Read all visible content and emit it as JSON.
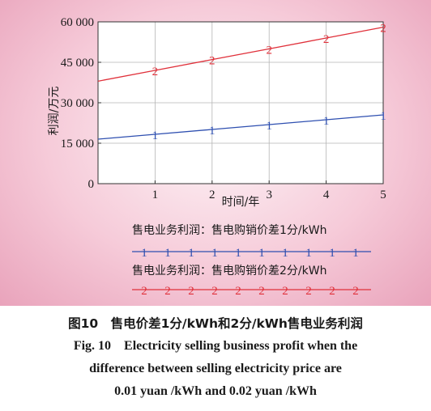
{
  "chart_data": {
    "type": "line",
    "title": "",
    "xlabel": "时间/年",
    "ylabel": "利润/万元",
    "xlim": [
      0,
      5
    ],
    "ylim": [
      0,
      60000
    ],
    "x_ticks": [
      1,
      2,
      3,
      4,
      5
    ],
    "x_tick_labels": [
      "1",
      "2",
      "3",
      "4",
      "5"
    ],
    "y_ticks": [
      0,
      15000,
      30000,
      45000,
      60000
    ],
    "y_tick_labels": [
      "0",
      "15 000",
      "30 000",
      "45 000",
      "60 000"
    ],
    "grid": true,
    "legend_position": "bottom",
    "series": [
      {
        "name": "售电业务利润：售电购销价差1分/kWh",
        "marker": "1",
        "color": "#2e4fb0",
        "x": [
          0,
          1,
          2,
          3,
          4,
          5
        ],
        "y": [
          16500,
          18300,
          20100,
          21900,
          23700,
          25500
        ]
      },
      {
        "name": "售电业务利润：售电购销价差2分/kWh",
        "marker": "2",
        "color": "#e0303a",
        "x": [
          0,
          1,
          2,
          3,
          4,
          5
        ],
        "y": [
          38000,
          42000,
          46000,
          50000,
          54000,
          58000
        ]
      }
    ]
  },
  "caption": {
    "cn": "图10　售电价差1分/kWh和2分/kWh售电业务利润",
    "en_lines": [
      "Fig. 10　Electricity selling business profit when the",
      "difference between selling electricity price are",
      "0.01 yuan /kWh and 0.02 yuan /kWh"
    ]
  }
}
